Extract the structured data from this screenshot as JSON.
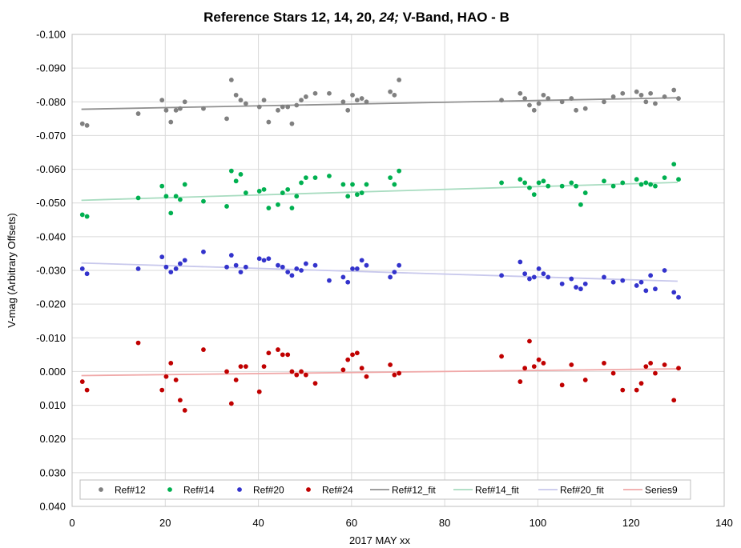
{
  "chart_data": {
    "type": "scatter",
    "title": "Reference Stars 12, 14, 20, ",
    "title_italic": "24;",
    "title_suffix": " V-Band, HAO - B",
    "xlabel": "2017 MAY xx",
    "ylabel": "V-mag (Arbitrary Offsets)",
    "xlim": [
      0,
      140
    ],
    "ylim": [
      -0.1,
      0.04
    ],
    "y_reversed": true,
    "x_ticks": [
      0,
      20,
      40,
      60,
      80,
      100,
      120,
      140
    ],
    "y_ticks": [
      -0.1,
      -0.09,
      -0.08,
      -0.07,
      -0.06,
      -0.05,
      -0.04,
      -0.03,
      -0.02,
      -0.01,
      0.0,
      0.01,
      0.02,
      0.03,
      0.04
    ],
    "y_tick_labels": [
      "-0.100",
      "-0.090",
      "-0.080",
      "-0.070",
      "-0.060",
      "-0.050",
      "-0.040",
      "-0.030",
      "-0.020",
      "-0.010",
      "0.000",
      "0.010",
      "0.020",
      "0.030",
      "0.040"
    ],
    "grid": true,
    "legend_position": "bottom",
    "series": [
      {
        "name": "Ref#12",
        "kind": "scatter",
        "color": "#808080",
        "points": [
          [
            2.2,
            -0.0735
          ],
          [
            3.2,
            -0.073
          ],
          [
            14.2,
            -0.0765
          ],
          [
            19.3,
            -0.0805
          ],
          [
            20.2,
            -0.0775
          ],
          [
            21.2,
            -0.074
          ],
          [
            22.3,
            -0.0775
          ],
          [
            23.2,
            -0.078
          ],
          [
            24.2,
            -0.08
          ],
          [
            28.2,
            -0.078
          ],
          [
            33.2,
            -0.075
          ],
          [
            34.2,
            -0.0865
          ],
          [
            35.2,
            -0.082
          ],
          [
            36.2,
            -0.0805
          ],
          [
            37.3,
            -0.0795
          ],
          [
            40.2,
            -0.0785
          ],
          [
            41.2,
            -0.0805
          ],
          [
            42.2,
            -0.074
          ],
          [
            44.2,
            -0.0775
          ],
          [
            45.2,
            -0.0785
          ],
          [
            46.3,
            -0.0785
          ],
          [
            47.2,
            -0.0735
          ],
          [
            48.2,
            -0.079
          ],
          [
            49.2,
            -0.0805
          ],
          [
            50.2,
            -0.0815
          ],
          [
            52.2,
            -0.0825
          ],
          [
            55.2,
            -0.0825
          ],
          [
            58.2,
            -0.08
          ],
          [
            59.2,
            -0.0775
          ],
          [
            60.2,
            -0.082
          ],
          [
            61.2,
            -0.0805
          ],
          [
            62.2,
            -0.081
          ],
          [
            63.2,
            -0.08
          ],
          [
            68.3,
            -0.083
          ],
          [
            69.2,
            -0.082
          ],
          [
            70.2,
            -0.0865
          ],
          [
            92.2,
            -0.0805
          ],
          [
            96.2,
            -0.0825
          ],
          [
            97.2,
            -0.081
          ],
          [
            98.2,
            -0.079
          ],
          [
            99.2,
            -0.0775
          ],
          [
            100.2,
            -0.0795
          ],
          [
            101.2,
            -0.082
          ],
          [
            102.2,
            -0.081
          ],
          [
            105.2,
            -0.08
          ],
          [
            107.2,
            -0.081
          ],
          [
            108.2,
            -0.0775
          ],
          [
            110.2,
            -0.078
          ],
          [
            114.2,
            -0.08
          ],
          [
            116.2,
            -0.0815
          ],
          [
            118.2,
            -0.0825
          ],
          [
            121.2,
            -0.083
          ],
          [
            122.2,
            -0.082
          ],
          [
            123.2,
            -0.08
          ],
          [
            124.2,
            -0.0825
          ],
          [
            125.2,
            -0.0795
          ],
          [
            127.2,
            -0.0815
          ],
          [
            129.2,
            -0.0835
          ],
          [
            130.2,
            -0.081
          ]
        ]
      },
      {
        "name": "Ref#14",
        "kind": "scatter",
        "color": "#00b050",
        "points": [
          [
            2.2,
            -0.0465
          ],
          [
            3.2,
            -0.046
          ],
          [
            14.2,
            -0.0515
          ],
          [
            19.3,
            -0.055
          ],
          [
            20.2,
            -0.052
          ],
          [
            21.2,
            -0.047
          ],
          [
            22.3,
            -0.052
          ],
          [
            23.2,
            -0.051
          ],
          [
            24.2,
            -0.0555
          ],
          [
            28.2,
            -0.0505
          ],
          [
            33.2,
            -0.049
          ],
          [
            34.2,
            -0.0595
          ],
          [
            35.2,
            -0.0565
          ],
          [
            36.2,
            -0.0585
          ],
          [
            37.3,
            -0.053
          ],
          [
            40.2,
            -0.0535
          ],
          [
            41.2,
            -0.054
          ],
          [
            42.2,
            -0.0485
          ],
          [
            44.2,
            -0.0495
          ],
          [
            45.2,
            -0.053
          ],
          [
            46.3,
            -0.054
          ],
          [
            47.2,
            -0.0485
          ],
          [
            48.2,
            -0.052
          ],
          [
            49.2,
            -0.056
          ],
          [
            50.2,
            -0.0575
          ],
          [
            52.2,
            -0.0575
          ],
          [
            55.2,
            -0.058
          ],
          [
            58.2,
            -0.0555
          ],
          [
            59.2,
            -0.052
          ],
          [
            60.2,
            -0.0555
          ],
          [
            61.2,
            -0.0525
          ],
          [
            62.2,
            -0.053
          ],
          [
            63.2,
            -0.0555
          ],
          [
            68.3,
            -0.0575
          ],
          [
            69.2,
            -0.0555
          ],
          [
            70.2,
            -0.0595
          ],
          [
            92.2,
            -0.056
          ],
          [
            96.2,
            -0.057
          ],
          [
            97.2,
            -0.056
          ],
          [
            98.2,
            -0.0545
          ],
          [
            99.2,
            -0.0525
          ],
          [
            100.2,
            -0.056
          ],
          [
            101.2,
            -0.0565
          ],
          [
            102.2,
            -0.055
          ],
          [
            105.2,
            -0.055
          ],
          [
            107.2,
            -0.056
          ],
          [
            108.2,
            -0.055
          ],
          [
            109.2,
            -0.0495
          ],
          [
            110.2,
            -0.053
          ],
          [
            114.2,
            -0.0565
          ],
          [
            116.2,
            -0.055
          ],
          [
            118.2,
            -0.056
          ],
          [
            121.2,
            -0.057
          ],
          [
            122.2,
            -0.0555
          ],
          [
            123.2,
            -0.056
          ],
          [
            124.2,
            -0.0555
          ],
          [
            125.2,
            -0.055
          ],
          [
            127.2,
            -0.0575
          ],
          [
            129.2,
            -0.0615
          ],
          [
            130.2,
            -0.057
          ]
        ]
      },
      {
        "name": "Ref#20",
        "kind": "scatter",
        "color": "#3333cc",
        "points": [
          [
            2.2,
            -0.0305
          ],
          [
            3.2,
            -0.029
          ],
          [
            14.2,
            -0.0305
          ],
          [
            19.3,
            -0.034
          ],
          [
            20.2,
            -0.031
          ],
          [
            21.2,
            -0.0295
          ],
          [
            22.3,
            -0.0305
          ],
          [
            23.2,
            -0.032
          ],
          [
            24.2,
            -0.033
          ],
          [
            28.2,
            -0.0355
          ],
          [
            33.2,
            -0.031
          ],
          [
            34.2,
            -0.0345
          ],
          [
            35.2,
            -0.0315
          ],
          [
            36.2,
            -0.0295
          ],
          [
            37.3,
            -0.031
          ],
          [
            40.2,
            -0.0335
          ],
          [
            41.2,
            -0.033
          ],
          [
            42.2,
            -0.0335
          ],
          [
            44.2,
            -0.0315
          ],
          [
            45.2,
            -0.031
          ],
          [
            46.3,
            -0.0295
          ],
          [
            47.2,
            -0.0285
          ],
          [
            48.2,
            -0.0305
          ],
          [
            49.2,
            -0.03
          ],
          [
            50.2,
            -0.032
          ],
          [
            52.2,
            -0.0315
          ],
          [
            55.2,
            -0.027
          ],
          [
            58.2,
            -0.028
          ],
          [
            59.2,
            -0.0265
          ],
          [
            60.2,
            -0.0305
          ],
          [
            61.2,
            -0.0305
          ],
          [
            62.2,
            -0.033
          ],
          [
            63.2,
            -0.0315
          ],
          [
            68.3,
            -0.028
          ],
          [
            69.2,
            -0.0295
          ],
          [
            70.2,
            -0.0315
          ],
          [
            92.2,
            -0.0285
          ],
          [
            96.2,
            -0.0325
          ],
          [
            97.2,
            -0.029
          ],
          [
            98.2,
            -0.0275
          ],
          [
            99.2,
            -0.028
          ],
          [
            100.2,
            -0.0305
          ],
          [
            101.2,
            -0.029
          ],
          [
            102.2,
            -0.028
          ],
          [
            105.2,
            -0.026
          ],
          [
            107.2,
            -0.0275
          ],
          [
            108.2,
            -0.025
          ],
          [
            109.2,
            -0.0245
          ],
          [
            110.2,
            -0.026
          ],
          [
            114.2,
            -0.028
          ],
          [
            116.2,
            -0.0265
          ],
          [
            118.2,
            -0.027
          ],
          [
            121.2,
            -0.0255
          ],
          [
            122.2,
            -0.0265
          ],
          [
            123.2,
            -0.024
          ],
          [
            124.2,
            -0.0285
          ],
          [
            125.2,
            -0.0245
          ],
          [
            127.2,
            -0.03
          ],
          [
            129.2,
            -0.0235
          ],
          [
            130.2,
            -0.022
          ]
        ]
      },
      {
        "name": "Ref#24",
        "kind": "scatter",
        "color": "#c00000",
        "points": [
          [
            2.2,
            0.003
          ],
          [
            3.2,
            0.0055
          ],
          [
            14.2,
            -0.0085
          ],
          [
            19.3,
            0.0055
          ],
          [
            20.2,
            0.0015
          ],
          [
            21.2,
            -0.0025
          ],
          [
            22.3,
            0.0025
          ],
          [
            23.2,
            0.0085
          ],
          [
            24.2,
            0.0115
          ],
          [
            28.2,
            -0.0065
          ],
          [
            33.2,
            0.0
          ],
          [
            34.2,
            0.0095
          ],
          [
            35.2,
            0.0025
          ],
          [
            36.2,
            -0.0015
          ],
          [
            37.3,
            -0.0015
          ],
          [
            40.2,
            0.006
          ],
          [
            41.2,
            -0.0015
          ],
          [
            42.2,
            -0.0055
          ],
          [
            44.2,
            -0.0065
          ],
          [
            45.2,
            -0.005
          ],
          [
            46.3,
            -0.005
          ],
          [
            47.2,
            0.0
          ],
          [
            48.2,
            0.001
          ],
          [
            49.2,
            0.0
          ],
          [
            50.2,
            0.001
          ],
          [
            52.2,
            0.0035
          ],
          [
            58.2,
            -0.0005
          ],
          [
            59.2,
            -0.0035
          ],
          [
            60.2,
            -0.005
          ],
          [
            61.2,
            -0.0055
          ],
          [
            62.2,
            -0.001
          ],
          [
            63.2,
            0.0015
          ],
          [
            68.3,
            -0.002
          ],
          [
            69.2,
            0.001
          ],
          [
            70.2,
            0.0005
          ],
          [
            92.2,
            -0.0045
          ],
          [
            96.2,
            0.003
          ],
          [
            97.2,
            -0.001
          ],
          [
            98.2,
            -0.009
          ],
          [
            99.2,
            -0.0015
          ],
          [
            100.2,
            -0.0035
          ],
          [
            101.2,
            -0.0025
          ],
          [
            105.2,
            0.004
          ],
          [
            107.2,
            -0.002
          ],
          [
            110.2,
            0.0025
          ],
          [
            114.2,
            -0.0025
          ],
          [
            116.2,
            0.0005
          ],
          [
            118.2,
            0.0055
          ],
          [
            121.2,
            0.0055
          ],
          [
            122.2,
            0.0035
          ],
          [
            123.2,
            -0.0015
          ],
          [
            124.2,
            -0.0025
          ],
          [
            125.2,
            0.0005
          ],
          [
            127.2,
            -0.002
          ],
          [
            129.2,
            0.0085
          ],
          [
            130.2,
            -0.001
          ]
        ]
      },
      {
        "name": "Ref#12_fit",
        "kind": "line",
        "color": "#909090",
        "x": [
          2,
          130
        ],
        "y": [
          -0.0778,
          -0.0812
        ]
      },
      {
        "name": "Ref#14_fit",
        "kind": "line",
        "color": "#a8dcc0",
        "x": [
          2,
          130
        ],
        "y": [
          -0.0508,
          -0.0561
        ]
      },
      {
        "name": "Ref#20_fit",
        "kind": "line",
        "color": "#c8c8ec",
        "x": [
          2,
          130
        ],
        "y": [
          -0.0322,
          -0.0268
        ]
      },
      {
        "name": "Series9",
        "kind": "line",
        "color": "#f0a8a8",
        "x": [
          2,
          130
        ],
        "y": [
          0.0012,
          -0.0008
        ]
      }
    ]
  }
}
